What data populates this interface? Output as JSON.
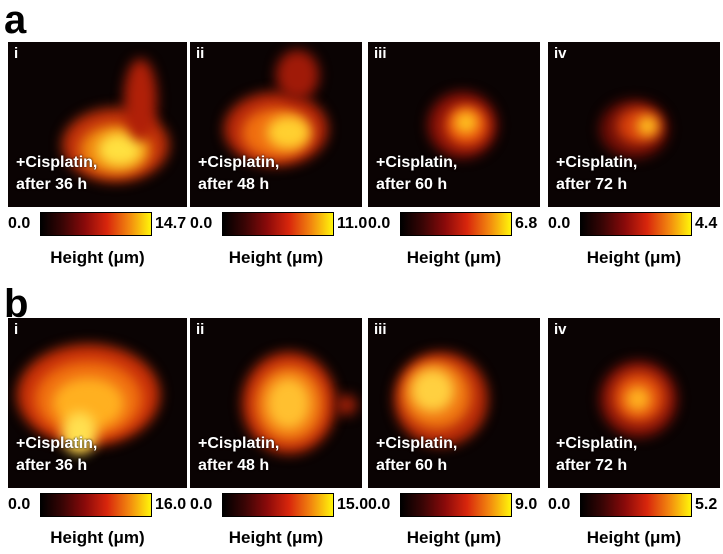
{
  "panels": [
    {
      "label": "a",
      "images": [
        {
          "index": "i",
          "caption_line1": "+Cisplatin,",
          "caption_line2": "after 36 h",
          "scale_min": "0.0",
          "scale_max": "14.7",
          "scale_label": "Height (μm)"
        },
        {
          "index": "ii",
          "caption_line1": "+Cisplatin,",
          "caption_line2": "after 48 h",
          "scale_min": "0.0",
          "scale_max": "11.0",
          "scale_label": "Height (μm)"
        },
        {
          "index": "iii",
          "caption_line1": "+Cisplatin,",
          "caption_line2": "after 60 h",
          "scale_min": "0.0",
          "scale_max": "6.8",
          "scale_label": "Height (μm)"
        },
        {
          "index": "iv",
          "caption_line1": "+Cisplatin,",
          "caption_line2": "after 72 h",
          "scale_min": "0.0",
          "scale_max": "4.4",
          "scale_label": "Height (μm)"
        }
      ]
    },
    {
      "label": "b",
      "images": [
        {
          "index": "i",
          "caption_line1": "+Cisplatin,",
          "caption_line2": "after 36 h",
          "scale_min": "0.0",
          "scale_max": "16.0",
          "scale_label": "Height (μm)"
        },
        {
          "index": "ii",
          "caption_line1": "+Cisplatin,",
          "caption_line2": "after 48 h",
          "scale_min": "0.0",
          "scale_max": "15.0",
          "scale_label": "Height (μm)"
        },
        {
          "index": "iii",
          "caption_line1": "+Cisplatin,",
          "caption_line2": "after 60 h",
          "scale_min": "0.0",
          "scale_max": "9.0",
          "scale_label": "Height (μm)"
        },
        {
          "index": "iv",
          "caption_line1": "+Cisplatin,",
          "caption_line2": "after 72 h",
          "scale_min": "0.0",
          "scale_max": "5.2",
          "scale_label": "Height (μm)"
        }
      ]
    }
  ]
}
